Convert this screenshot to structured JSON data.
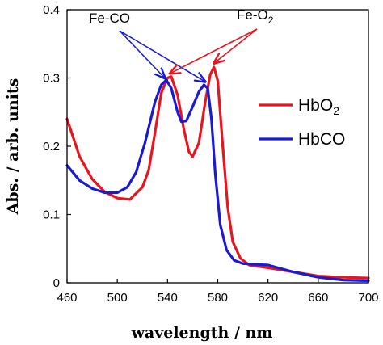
{
  "chart_data": {
    "type": "line",
    "xlabel": "wavelength / nm",
    "ylabel": "Abs. / arb. units",
    "xlim": [
      460,
      700
    ],
    "ylim": [
      0,
      0.4
    ],
    "x_ticks": [
      "460",
      "500",
      "540",
      "580",
      "620",
      "660",
      "700"
    ],
    "y_ticks": [
      "0",
      "0.1",
      "0.2",
      "0.3",
      "0.4"
    ],
    "grid": false,
    "legend_position": "right",
    "series": [
      {
        "name": "HbO",
        "name_sub": "2",
        "color": "#e8141e",
        "points": [
          [
            460,
            0.24
          ],
          [
            470,
            0.185
          ],
          [
            480,
            0.152
          ],
          [
            490,
            0.133
          ],
          [
            500,
            0.124
          ],
          [
            510,
            0.122
          ],
          [
            520,
            0.14
          ],
          [
            525,
            0.165
          ],
          [
            530,
            0.22
          ],
          [
            535,
            0.278
          ],
          [
            540,
            0.3
          ],
          [
            543,
            0.302
          ],
          [
            548,
            0.275
          ],
          [
            553,
            0.225
          ],
          [
            557,
            0.192
          ],
          [
            560,
            0.185
          ],
          [
            565,
            0.205
          ],
          [
            570,
            0.265
          ],
          [
            574,
            0.305
          ],
          [
            577,
            0.316
          ],
          [
            580,
            0.296
          ],
          [
            584,
            0.2
          ],
          [
            588,
            0.11
          ],
          [
            592,
            0.06
          ],
          [
            598,
            0.036
          ],
          [
            605,
            0.026
          ],
          [
            620,
            0.022
          ],
          [
            640,
            0.016
          ],
          [
            660,
            0.01
          ],
          [
            680,
            0.008
          ],
          [
            700,
            0.007
          ]
        ]
      },
      {
        "name": "HbCO",
        "name_sub": "",
        "color": "#1a1ad2",
        "points": [
          [
            460,
            0.172
          ],
          [
            470,
            0.15
          ],
          [
            480,
            0.138
          ],
          [
            490,
            0.132
          ],
          [
            500,
            0.132
          ],
          [
            508,
            0.14
          ],
          [
            515,
            0.162
          ],
          [
            522,
            0.205
          ],
          [
            530,
            0.265
          ],
          [
            535,
            0.29
          ],
          [
            539,
            0.297
          ],
          [
            543,
            0.285
          ],
          [
            548,
            0.25
          ],
          [
            551,
            0.236
          ],
          [
            555,
            0.237
          ],
          [
            560,
            0.258
          ],
          [
            565,
            0.28
          ],
          [
            569,
            0.29
          ],
          [
            572,
            0.285
          ],
          [
            575,
            0.24
          ],
          [
            578,
            0.16
          ],
          [
            582,
            0.085
          ],
          [
            587,
            0.048
          ],
          [
            593,
            0.033
          ],
          [
            600,
            0.028
          ],
          [
            620,
            0.026
          ],
          [
            640,
            0.016
          ],
          [
            660,
            0.008
          ],
          [
            680,
            0.004
          ],
          [
            700,
            0.003
          ]
        ]
      }
    ],
    "annotations": {
      "fe_co": {
        "label": "Fe-CO",
        "targets": [
          [
            538,
            0.296
          ],
          [
            570,
            0.291
          ]
        ]
      },
      "fe_o2": {
        "label": "Fe-O",
        "label_sub": "2",
        "targets": [
          [
            542,
            0.303
          ],
          [
            577,
            0.318
          ]
        ]
      }
    }
  }
}
